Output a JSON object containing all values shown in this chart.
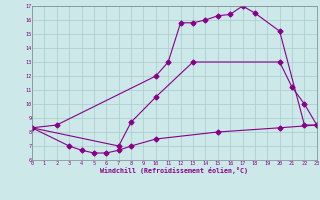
{
  "xlabel": "Windchill (Refroidissement éolien,°C)",
  "bg_color": "#cce8e8",
  "line_color": "#880088",
  "grid_color": "#aacccc",
  "xmin": 0,
  "xmax": 23,
  "ymin": 6,
  "ymax": 17,
  "line1_x": [
    0,
    2,
    10,
    11,
    12,
    13,
    14,
    15,
    16,
    17,
    18,
    20,
    22,
    23
  ],
  "line1_y": [
    8.3,
    8.5,
    12.0,
    13.0,
    15.8,
    15.8,
    16.0,
    16.3,
    16.4,
    17.0,
    16.5,
    15.2,
    8.5,
    8.5
  ],
  "line2_x": [
    0,
    7,
    8,
    10,
    13,
    20,
    21,
    22,
    23
  ],
  "line2_y": [
    8.3,
    7.0,
    8.7,
    10.5,
    13.0,
    13.0,
    11.2,
    10.0,
    8.5
  ],
  "line3_x": [
    0,
    3,
    4,
    5,
    6,
    7,
    8,
    10,
    15,
    20,
    23
  ],
  "line3_y": [
    8.3,
    7.0,
    6.7,
    6.5,
    6.5,
    6.7,
    7.0,
    7.5,
    8.0,
    8.3,
    8.5
  ]
}
